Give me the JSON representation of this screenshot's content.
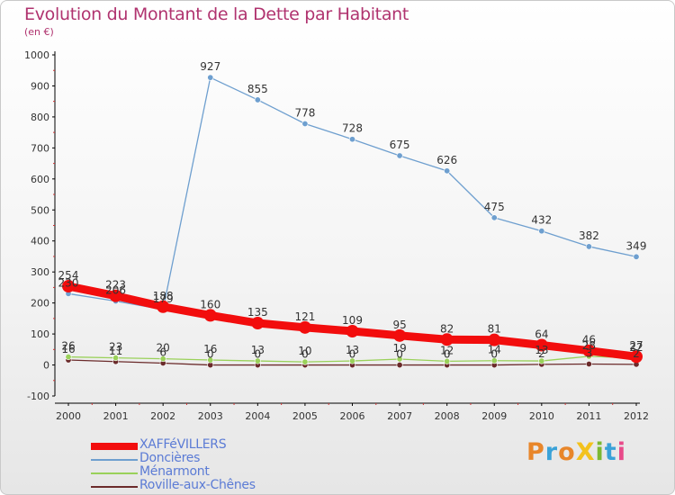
{
  "title": "Evolution du Montant de la Dette par Habitant",
  "subtitle": "(en €)",
  "logo": {
    "text": "ProXiti",
    "colors": [
      "#e8862a",
      "#3aa2d8",
      "#e8862a",
      "#f3c21d",
      "#7cb833",
      "#3aa2d8",
      "#e84a8a"
    ]
  },
  "chart_data": {
    "type": "line",
    "x": [
      "2000",
      "2001",
      "2002",
      "2003",
      "2004",
      "2005",
      "2006",
      "2007",
      "2008",
      "2009",
      "2010",
      "2011",
      "2012"
    ],
    "ylim": [
      -100,
      1000
    ],
    "yticks": [
      -100,
      0,
      100,
      200,
      300,
      400,
      500,
      600,
      700,
      800,
      900,
      1000
    ],
    "grid": false,
    "legend_position": "bottom-left",
    "series": [
      {
        "name": "XAFFéVILLERS",
        "color": "#f20d0d",
        "style": "thick",
        "values": [
          254,
          223,
          188,
          160,
          135,
          121,
          109,
          95,
          82,
          81,
          64,
          46,
          27
        ],
        "labels": [
          "254",
          "223",
          "188",
          "160",
          "135",
          "121",
          "109",
          "95",
          "82",
          "81",
          "64",
          "46",
          "27"
        ]
      },
      {
        "name": "Doncières",
        "color": "#6e9fcf",
        "style": "thin",
        "values": [
          230,
          206,
          179,
          927,
          855,
          778,
          728,
          675,
          626,
          475,
          432,
          382,
          349
        ],
        "labels": [
          "230",
          "206",
          "179",
          "927",
          "855",
          "778",
          "728",
          "675",
          "626",
          "475",
          "432",
          "382",
          "349"
        ]
      },
      {
        "name": "Ménarmont",
        "color": "#9ad15a",
        "style": "thin",
        "values": [
          26,
          23,
          20,
          16,
          13,
          10,
          13,
          19,
          12,
          14,
          13,
          28,
          22
        ],
        "labels": [
          "26",
          "23",
          "20",
          "16",
          "13",
          "10",
          "13",
          "19",
          "12",
          "14",
          "13",
          "28",
          "22"
        ]
      },
      {
        "name": "Roville-aux-Chênes",
        "color": "#6b2b2b",
        "style": "thin",
        "values": [
          16,
          11,
          6,
          0,
          0,
          0,
          0,
          0,
          0,
          0,
          2,
          3,
          2
        ],
        "labels": [
          "16",
          "11",
          "6",
          "0",
          "0",
          "0",
          "0",
          "0",
          "0",
          "0",
          "2",
          "3",
          "2"
        ]
      }
    ]
  }
}
